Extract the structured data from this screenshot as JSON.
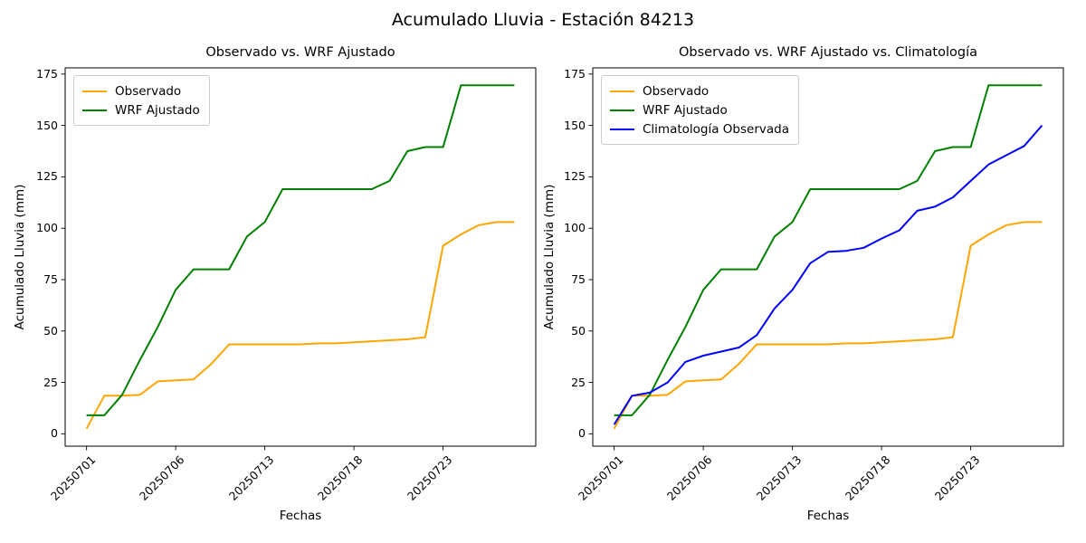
{
  "figure": {
    "suptitle": "Acumulado Lluvia - Estación 84213",
    "background": "#ffffff"
  },
  "chart_data": [
    {
      "type": "line",
      "title": "Observado vs. WRF Ajustado",
      "xlabel": "Fechas",
      "ylabel": "Acumulado Lluvia (mm)",
      "x_tick_labels": [
        "20250701",
        "20250706",
        "20250713",
        "20250718",
        "20250723"
      ],
      "x_tick_indices": [
        0,
        5,
        10,
        15,
        20
      ],
      "y_ticks": [
        0,
        25,
        50,
        75,
        100,
        125,
        150,
        175
      ],
      "ylim": [
        -6,
        178
      ],
      "xlim": [
        -1.2,
        25.2
      ],
      "n_points": 25,
      "grid": false,
      "legend_position": "upper-left",
      "series": [
        {
          "name": "Observado",
          "color": "#FFA500",
          "values": [
            2.5,
            18.5,
            18.5,
            19,
            25.5,
            26,
            26.5,
            34,
            43.5,
            43.5,
            43.5,
            43.5,
            43.5,
            44,
            44,
            44.5,
            45,
            45.5,
            46,
            47,
            91.5,
            97,
            101.5,
            103,
            103
          ]
        },
        {
          "name": "WRF Ajustado",
          "color": "#008000",
          "values": [
            9,
            9,
            19,
            36,
            52,
            70,
            80,
            80,
            80,
            96,
            103,
            119,
            119,
            119,
            119,
            119,
            119,
            123,
            137.5,
            139.5,
            139.5,
            169.5,
            169.5,
            169.5,
            169.5
          ]
        }
      ]
    },
    {
      "type": "line",
      "title": "Observado vs. WRF Ajustado vs. Climatología",
      "xlabel": "Fechas",
      "ylabel": "Acumulado Lluvia (mm)",
      "x_tick_labels": [
        "20250701",
        "20250706",
        "20250713",
        "20250718",
        "20250723"
      ],
      "x_tick_indices": [
        0,
        5,
        10,
        15,
        20
      ],
      "y_ticks": [
        0,
        25,
        50,
        75,
        100,
        125,
        150,
        175
      ],
      "ylim": [
        -6,
        178
      ],
      "xlim": [
        -1.2,
        25.2
      ],
      "n_points": 25,
      "grid": false,
      "legend_position": "upper-left",
      "series": [
        {
          "name": "Observado",
          "color": "#FFA500",
          "values": [
            2.5,
            18.5,
            18.5,
            19,
            25.5,
            26,
            26.5,
            34,
            43.5,
            43.5,
            43.5,
            43.5,
            43.5,
            44,
            44,
            44.5,
            45,
            45.5,
            46,
            47,
            91.5,
            97,
            101.5,
            103,
            103
          ]
        },
        {
          "name": "WRF Ajustado",
          "color": "#008000",
          "values": [
            9,
            9,
            19,
            36,
            52,
            70,
            80,
            80,
            80,
            96,
            103,
            119,
            119,
            119,
            119,
            119,
            119,
            123,
            137.5,
            139.5,
            139.5,
            169.5,
            169.5,
            169.5,
            169.5
          ]
        },
        {
          "name": "Climatología Observada",
          "color": "#0000FF",
          "values": [
            4.5,
            18.5,
            20,
            25,
            35,
            38,
            40,
            42,
            48,
            61,
            70,
            83,
            88.5,
            89,
            90.5,
            95,
            99,
            108.5,
            110.5,
            115,
            123,
            131,
            135.5,
            140,
            150
          ]
        }
      ]
    }
  ]
}
